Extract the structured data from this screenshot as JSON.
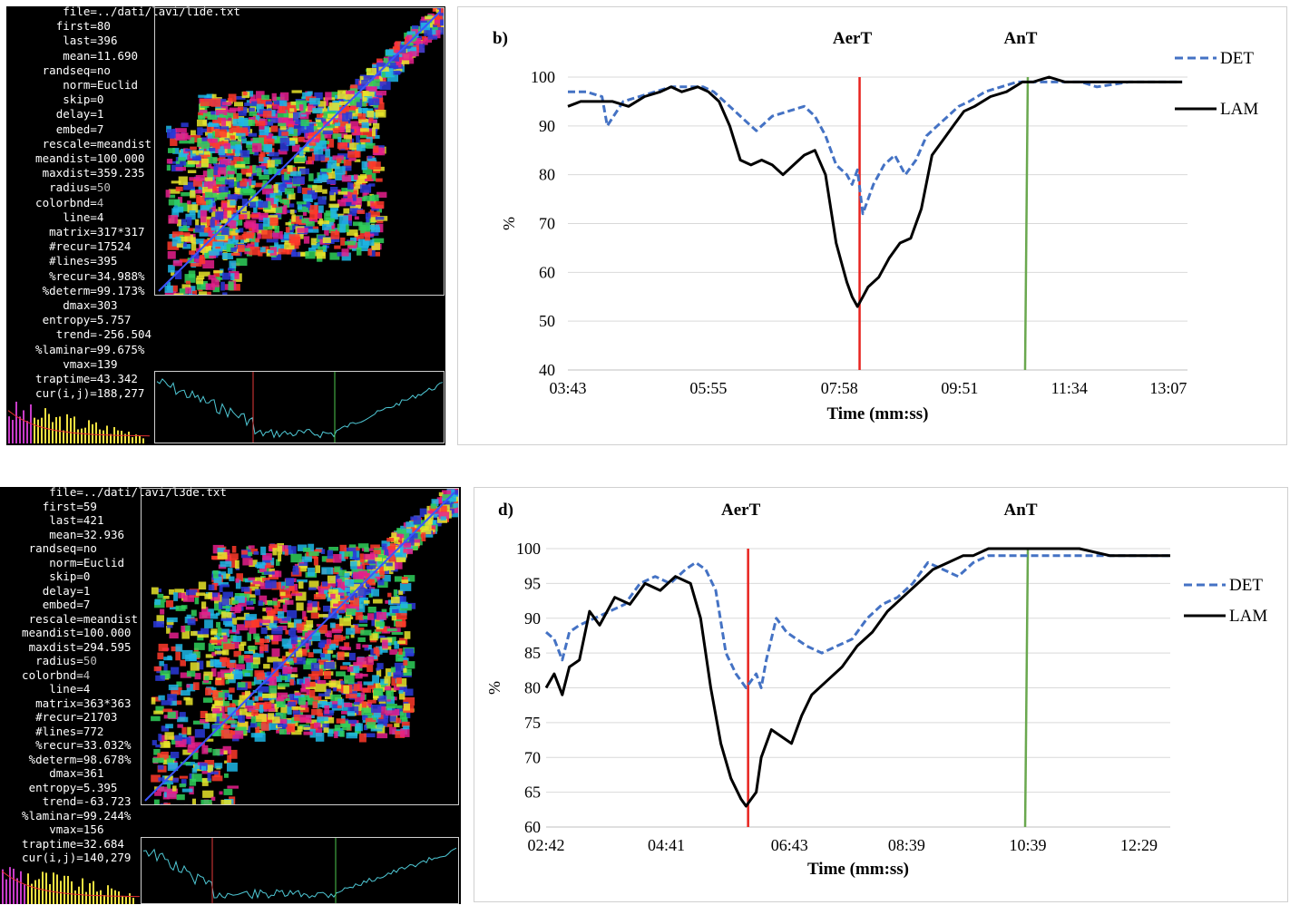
{
  "rqa_panels": [
    {
      "params": [
        {
          "k": "file=",
          "v": "../dati/lavi/l1de.txt"
        },
        {
          "k": "first=",
          "v": "80"
        },
        {
          "k": "last=",
          "v": "396"
        },
        {
          "k": "mean=",
          "v": "11.690"
        },
        {
          "k": "randseq=",
          "v": "no"
        },
        {
          "k": "norm=",
          "v": "Euclid"
        },
        {
          "k": "skip=",
          "v": "0"
        },
        {
          "k": "delay=",
          "v": "1"
        },
        {
          "k": "embed=",
          "v": "7"
        },
        {
          "k": "rescale=",
          "v": "meandist"
        },
        {
          "k": "meandist=",
          "v": "100.000"
        },
        {
          "k": "maxdist=",
          "v": "359.235"
        },
        {
          "k": "radius=",
          "v": "50"
        },
        {
          "k": "colorbnd=",
          "v": "4"
        },
        {
          "k": "line=",
          "v": "4"
        },
        {
          "k": "matrix=",
          "v": "317*317"
        },
        {
          "k": "#recur=",
          "v": "17524"
        },
        {
          "k": "#lines=",
          "v": "395"
        },
        {
          "k": "%recur=",
          "v": "34.988%"
        },
        {
          "k": "%determ=",
          "v": "99.173%"
        },
        {
          "k": "dmax=",
          "v": "303"
        },
        {
          "k": "entropy=",
          "v": "5.757"
        },
        {
          "k": "trend=",
          "v": "-256.504"
        },
        {
          "k": "%laminar=",
          "v": "99.675%"
        },
        {
          "k": "vmax=",
          "v": "139"
        },
        {
          "k": "traptime=",
          "v": "43.342"
        },
        {
          "k": "cur(i,j)=",
          "v": "188,277"
        }
      ]
    },
    {
      "params": [
        {
          "k": "file=",
          "v": "../dati/lavi/l3de.txt"
        },
        {
          "k": "first=",
          "v": "59"
        },
        {
          "k": "last=",
          "v": "421"
        },
        {
          "k": "mean=",
          "v": "32.936"
        },
        {
          "k": "randseq=",
          "v": "no"
        },
        {
          "k": "norm=",
          "v": "Euclid"
        },
        {
          "k": "skip=",
          "v": "0"
        },
        {
          "k": "delay=",
          "v": "1"
        },
        {
          "k": "embed=",
          "v": "7"
        },
        {
          "k": "rescale=",
          "v": "meandist"
        },
        {
          "k": "meandist=",
          "v": "100.000"
        },
        {
          "k": "maxdist=",
          "v": "294.595"
        },
        {
          "k": "radius=",
          "v": "50"
        },
        {
          "k": "colorbnd=",
          "v": "4"
        },
        {
          "k": "line=",
          "v": "4"
        },
        {
          "k": "matrix=",
          "v": "363*363"
        },
        {
          "k": "#recur=",
          "v": "21703"
        },
        {
          "k": "#lines=",
          "v": "772"
        },
        {
          "k": "%recur=",
          "v": "33.032%"
        },
        {
          "k": "%determ=",
          "v": "98.678%"
        },
        {
          "k": "dmax=",
          "v": "361"
        },
        {
          "k": "entropy=",
          "v": "5.395"
        },
        {
          "k": "trend=",
          "v": "-63.723"
        },
        {
          "k": "%laminar=",
          "v": "99.244%"
        },
        {
          "k": "vmax=",
          "v": "156"
        },
        {
          "k": "traptime=",
          "v": "32.684"
        },
        {
          "k": "cur(i,j)=",
          "v": "140,279"
        }
      ]
    }
  ],
  "chart_data": [
    {
      "type": "line",
      "panel_label": "b)",
      "xlabel": "Time (mm:ss)",
      "ylabel": "%",
      "ylim": [
        40,
        100
      ],
      "yticks": [
        40,
        50,
        60,
        70,
        80,
        90,
        100
      ],
      "xlim_seconds": [
        223,
        805
      ],
      "xticks": [
        "03:43",
        "05:55",
        "07:58",
        "09:51",
        "11:34",
        "13:07"
      ],
      "xticks_seconds": [
        223,
        355,
        478,
        591,
        694,
        787
      ],
      "annotations": [
        {
          "text": "AerT",
          "time": "08:17",
          "color": "#e8231e"
        },
        {
          "text": "AnT",
          "time": "10:55",
          "color": "#6aa84f"
        }
      ],
      "legend": {
        "placement": "right"
      },
      "series": [
        {
          "name": "DET",
          "color": "#4472c4",
          "dash": true,
          "x": [
            "03:43",
            "04:00",
            "04:15",
            "04:20",
            "04:35",
            "04:50",
            "05:05",
            "05:20",
            "05:40",
            "05:50",
            "06:00",
            "06:10",
            "06:25",
            "06:40",
            "06:55",
            "07:10",
            "07:25",
            "07:35",
            "07:45",
            "07:55",
            "08:05",
            "08:10",
            "08:15",
            "08:20",
            "08:30",
            "08:40",
            "08:50",
            "09:00",
            "09:10",
            "09:20",
            "09:30",
            "09:40",
            "09:50",
            "10:00",
            "10:15",
            "10:30",
            "10:45",
            "11:00",
            "11:15",
            "11:30",
            "11:45",
            "12:00",
            "12:30",
            "13:00",
            "13:20"
          ],
          "values": [
            97,
            97,
            96,
            90,
            95,
            96,
            97,
            98,
            98,
            98,
            97,
            95,
            92,
            89,
            92,
            93,
            94,
            92,
            88,
            82,
            80,
            78,
            81,
            72,
            78,
            82,
            84,
            80,
            83,
            88,
            90,
            92,
            94,
            95,
            97,
            98,
            99,
            99,
            99,
            99,
            99,
            98,
            99,
            99,
            99
          ]
        },
        {
          "name": "LAM",
          "color": "#000000",
          "dash": false,
          "x": [
            "03:43",
            "03:55",
            "04:10",
            "04:25",
            "04:40",
            "04:55",
            "05:10",
            "05:20",
            "05:30",
            "05:45",
            "05:55",
            "06:05",
            "06:15",
            "06:25",
            "06:35",
            "06:45",
            "06:55",
            "07:05",
            "07:15",
            "07:25",
            "07:35",
            "07:45",
            "07:55",
            "08:00",
            "08:05",
            "08:10",
            "08:15",
            "08:20",
            "08:25",
            "08:35",
            "08:45",
            "08:55",
            "09:05",
            "09:15",
            "09:25",
            "09:35",
            "09:45",
            "09:55",
            "10:05",
            "10:20",
            "10:35",
            "10:50",
            "11:00",
            "11:15",
            "11:30",
            "12:00",
            "12:30",
            "13:00",
            "13:20"
          ],
          "values": [
            94,
            95,
            95,
            95,
            94,
            96,
            97,
            98,
            97,
            98,
            97,
            95,
            90,
            83,
            82,
            83,
            82,
            80,
            82,
            84,
            85,
            80,
            66,
            62,
            58,
            55,
            53,
            55,
            57,
            59,
            63,
            66,
            67,
            73,
            84,
            87,
            90,
            93,
            94,
            96,
            97,
            99,
            99,
            100,
            99,
            99,
            99,
            99,
            99
          ]
        }
      ]
    },
    {
      "type": "line",
      "panel_label": "d)",
      "xlabel": "Time (mm:ss)",
      "ylabel": "%",
      "ylim": [
        60,
        100
      ],
      "yticks": [
        60,
        65,
        70,
        75,
        80,
        85,
        90,
        95,
        100
      ],
      "xlim_seconds": [
        162,
        780
      ],
      "xticks": [
        "02:42",
        "04:41",
        "06:43",
        "08:39",
        "10:39",
        "12:29"
      ],
      "xticks_seconds": [
        162,
        281,
        403,
        519,
        639,
        749
      ],
      "annotations": [
        {
          "text": "AerT",
          "time": "06:02",
          "color": "#e8231e"
        },
        {
          "text": "AnT",
          "time": "10:39",
          "color": "#6aa84f"
        }
      ],
      "legend": {
        "placement": "right"
      },
      "series": [
        {
          "name": "DET",
          "color": "#4472c4",
          "dash": true,
          "x": [
            "02:42",
            "02:50",
            "02:58",
            "03:05",
            "03:15",
            "03:30",
            "03:45",
            "04:00",
            "04:15",
            "04:30",
            "04:45",
            "05:00",
            "05:10",
            "05:20",
            "05:30",
            "05:40",
            "05:50",
            "06:00",
            "06:05",
            "06:10",
            "06:15",
            "06:20",
            "06:30",
            "06:40",
            "06:50",
            "07:00",
            "07:15",
            "07:30",
            "07:45",
            "08:00",
            "08:15",
            "08:30",
            "08:45",
            "09:00",
            "09:15",
            "09:30",
            "09:45",
            "10:00",
            "10:15",
            "10:30",
            "10:45",
            "11:00",
            "11:30",
            "12:00",
            "12:30",
            "13:00"
          ],
          "values": [
            88,
            87,
            84,
            88,
            89,
            90,
            91,
            92,
            95,
            96,
            95,
            97,
            98,
            97,
            94,
            85,
            82,
            80,
            81,
            82,
            80,
            84,
            90,
            88,
            87,
            86,
            85,
            86,
            87,
            90,
            92,
            93,
            95,
            98,
            97,
            96,
            98,
            99,
            99,
            99,
            99,
            99,
            99,
            99,
            99,
            99
          ]
        },
        {
          "name": "LAM",
          "color": "#000000",
          "dash": false,
          "x": [
            "02:42",
            "02:50",
            "02:58",
            "03:05",
            "03:15",
            "03:25",
            "03:35",
            "03:50",
            "04:05",
            "04:20",
            "04:35",
            "04:50",
            "05:05",
            "05:15",
            "05:25",
            "05:35",
            "05:45",
            "05:55",
            "06:00",
            "06:05",
            "06:10",
            "06:15",
            "06:25",
            "06:35",
            "06:45",
            "06:55",
            "07:05",
            "07:20",
            "07:35",
            "07:50",
            "08:05",
            "08:20",
            "08:35",
            "08:50",
            "09:05",
            "09:20",
            "09:35",
            "09:45",
            "10:00",
            "10:20",
            "10:40",
            "11:00",
            "11:30",
            "12:00",
            "12:30",
            "13:00"
          ],
          "values": [
            80,
            82,
            79,
            83,
            84,
            91,
            89,
            93,
            92,
            95,
            94,
            96,
            95,
            90,
            80,
            72,
            67,
            64,
            63,
            64,
            65,
            70,
            74,
            73,
            72,
            76,
            79,
            81,
            83,
            86,
            88,
            91,
            93,
            95,
            97,
            98,
            99,
            99,
            100,
            100,
            100,
            100,
            100,
            99,
            99,
            99
          ]
        }
      ]
    }
  ]
}
